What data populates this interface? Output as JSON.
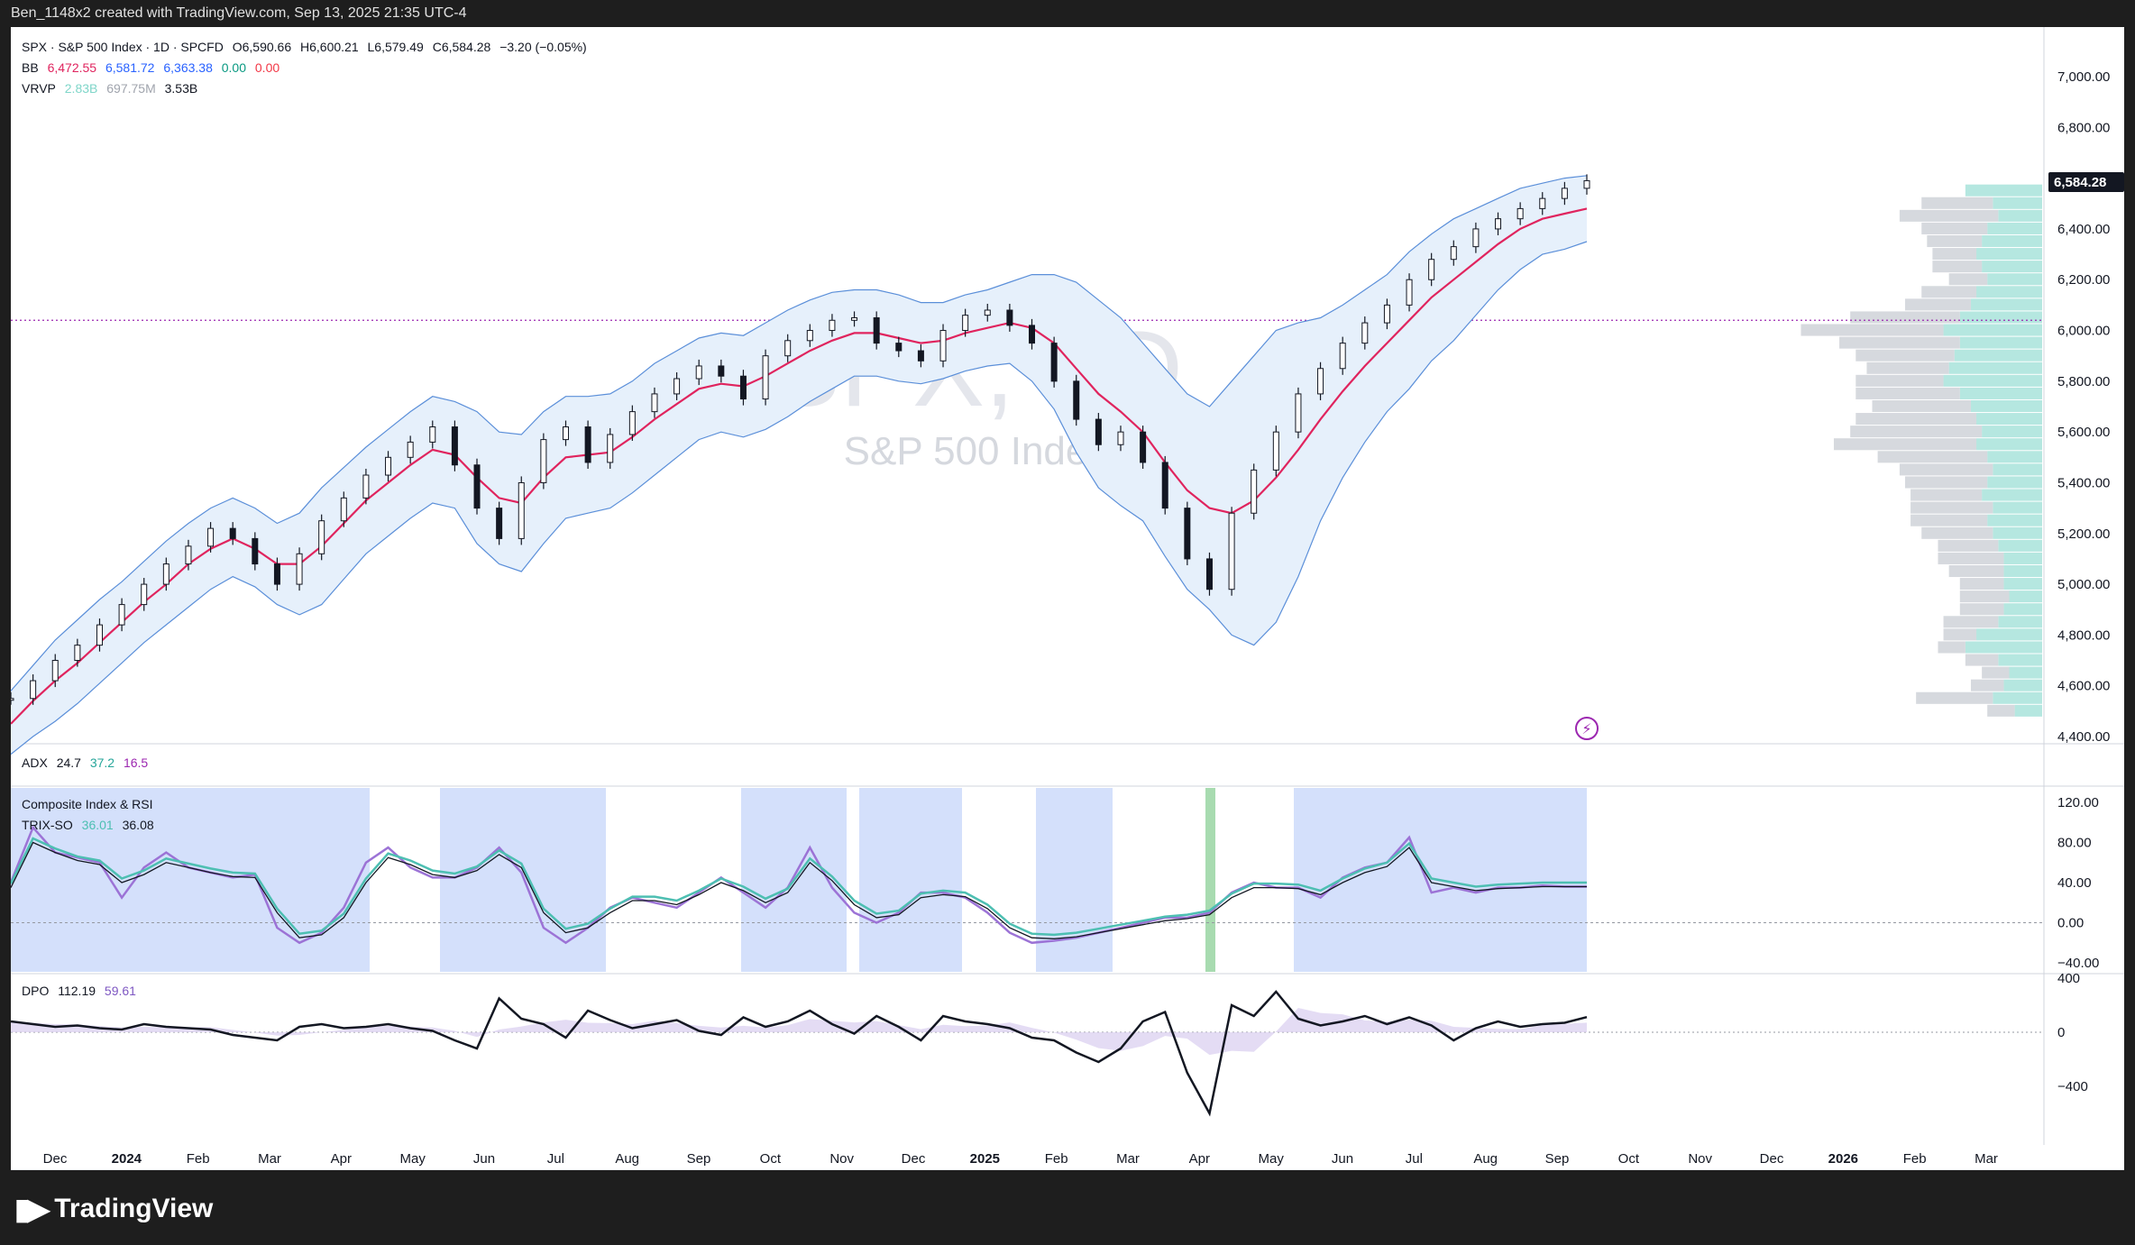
{
  "header": {
    "text": "Ben_1148x2 created with TradingView.com, Sep 13, 2025 21:35 UTC-4"
  },
  "legend": {
    "main": {
      "symbol": "SPX · S&P 500 Index · 1D · SPCFD",
      "open": "O6,590.66",
      "high": "H6,600.21",
      "low": "L6,579.49",
      "close": "C6,584.28",
      "change": "−3.20 (−0.05%)"
    },
    "bb": {
      "label": "BB",
      "v1": "6,472.55",
      "v2": "6,581.72",
      "v3": "6,363.38",
      "v4": "0.00",
      "v5": "0.00"
    },
    "vrvp": {
      "label": "VRVP",
      "v1": "2.83B",
      "v2": "697.75M",
      "v3": "3.53B"
    },
    "adx": {
      "label": "ADX",
      "v1": "24.7",
      "v2": "37.2",
      "v3": "16.5"
    },
    "composite": {
      "label": "Composite Index & RSI"
    },
    "trix": {
      "label": "TRIX-SO",
      "v1": "36.01",
      "v2": "36.08"
    },
    "dpo": {
      "label": "DPO",
      "v1": "112.19",
      "v2": "59.61"
    }
  },
  "watermark": {
    "big": "SPX, 1D",
    "small": "S&P 500 Index"
  },
  "price_badge": "6,584.28",
  "footer": {
    "logo": "TradingView"
  },
  "colors": {
    "accent_red": "#e0245e",
    "band_fill": "#e6f0fb",
    "band_line": "#5b8fd9",
    "teal": "#4dbfb2",
    "purple": "#9c73d6",
    "highlight_blue": "#d4e0fb",
    "highlight_green": "#a8dbb0"
  },
  "chart_data": {
    "type": "line",
    "title": "SPX · S&P 500 Index · 1D · SPCFD",
    "price_axis": {
      "ticks": [
        "7,000.00",
        "6,800.00",
        "6,600.00",
        "6,400.00",
        "6,200.00",
        "6,000.00",
        "5,800.00",
        "5,600.00",
        "5,400.00",
        "5,200.00",
        "5,000.00",
        "4,800.00",
        "4,600.00",
        "4,400.00"
      ],
      "ylim": [
        4350,
        7100
      ]
    },
    "rsi_axis": {
      "ticks": [
        "120.00",
        "80.00",
        "40.00",
        "0.00",
        "−40.00"
      ]
    },
    "dpo_axis": {
      "ticks": [
        "400",
        "0",
        "−400"
      ]
    },
    "time_axis": [
      {
        "label": "Dec",
        "bold": false
      },
      {
        "label": "2024",
        "bold": true
      },
      {
        "label": "Feb",
        "bold": false
      },
      {
        "label": "Mar",
        "bold": false
      },
      {
        "label": "Apr",
        "bold": false
      },
      {
        "label": "May",
        "bold": false
      },
      {
        "label": "Jun",
        "bold": false
      },
      {
        "label": "Jul",
        "bold": false
      },
      {
        "label": "Aug",
        "bold": false
      },
      {
        "label": "Sep",
        "bold": false
      },
      {
        "label": "Oct",
        "bold": false
      },
      {
        "label": "Nov",
        "bold": false
      },
      {
        "label": "Dec",
        "bold": false
      },
      {
        "label": "2025",
        "bold": true
      },
      {
        "label": "Feb",
        "bold": false
      },
      {
        "label": "Mar",
        "bold": false
      },
      {
        "label": "Apr",
        "bold": false
      },
      {
        "label": "May",
        "bold": false
      },
      {
        "label": "Jun",
        "bold": false
      },
      {
        "label": "Jul",
        "bold": false
      },
      {
        "label": "Aug",
        "bold": false
      },
      {
        "label": "Sep",
        "bold": false
      },
      {
        "label": "Oct",
        "bold": false
      },
      {
        "label": "Nov",
        "bold": false
      },
      {
        "label": "Dec",
        "bold": false
      },
      {
        "label": "2026",
        "bold": true
      },
      {
        "label": "Feb",
        "bold": false
      },
      {
        "label": "Mar",
        "bold": false
      }
    ],
    "price_series": {
      "name": "SPX",
      "values": [
        4550,
        4620,
        4700,
        4760,
        4840,
        4920,
        5000,
        5080,
        5150,
        5220,
        5180,
        5080,
        5000,
        5120,
        5250,
        5340,
        5430,
        5500,
        5560,
        5620,
        5470,
        5300,
        5180,
        5400,
        5570,
        5620,
        5480,
        5590,
        5680,
        5750,
        5810,
        5860,
        5820,
        5730,
        5900,
        5960,
        6000,
        6040,
        6050,
        5950,
        5920,
        5880,
        6000,
        6060,
        6080,
        6020,
        5950,
        5800,
        5650,
        5550,
        5600,
        5480,
        5300,
        5100,
        4980,
        5280,
        5450,
        5600,
        5750,
        5850,
        5950,
        6030,
        6100,
        6200,
        6280,
        6330,
        6400,
        6440,
        6480,
        6520,
        6560,
        6590
      ]
    },
    "bb_basis": {
      "name": "BB",
      "values": [
        4450,
        4540,
        4620,
        4690,
        4770,
        4850,
        4930,
        5000,
        5080,
        5140,
        5180,
        5140,
        5080,
        5080,
        5150,
        5240,
        5330,
        5400,
        5470,
        5530,
        5510,
        5420,
        5340,
        5320,
        5420,
        5500,
        5510,
        5520,
        5580,
        5650,
        5710,
        5770,
        5790,
        5780,
        5820,
        5870,
        5920,
        5960,
        5990,
        5990,
        5970,
        5950,
        5960,
        5990,
        6010,
        6030,
        6010,
        5950,
        5850,
        5750,
        5680,
        5600,
        5480,
        5370,
        5300,
        5280,
        5330,
        5420,
        5530,
        5650,
        5760,
        5860,
        5950,
        6040,
        6130,
        6200,
        6270,
        6340,
        6400,
        6440,
        6460,
        6480
      ]
    },
    "bb_upper": {
      "values": [
        4580,
        4680,
        4780,
        4860,
        4940,
        5010,
        5090,
        5170,
        5240,
        5300,
        5340,
        5300,
        5240,
        5280,
        5380,
        5460,
        5540,
        5610,
        5680,
        5740,
        5720,
        5680,
        5600,
        5590,
        5680,
        5740,
        5740,
        5750,
        5800,
        5870,
        5920,
        5970,
        5990,
        5980,
        6030,
        6080,
        6120,
        6150,
        6160,
        6160,
        6140,
        6110,
        6110,
        6140,
        6160,
        6190,
        6220,
        6220,
        6190,
        6120,
        6050,
        5950,
        5850,
        5750,
        5700,
        5800,
        5900,
        6000,
        6030,
        6050,
        6100,
        6160,
        6220,
        6310,
        6380,
        6440,
        6480,
        6520,
        6560,
        6580,
        6600,
        6610
      ]
    },
    "bb_lower": {
      "values": [
        4330,
        4400,
        4460,
        4530,
        4610,
        4690,
        4770,
        4840,
        4910,
        4980,
        5030,
        4990,
        4920,
        4880,
        4920,
        5020,
        5120,
        5190,
        5260,
        5320,
        5300,
        5160,
        5080,
        5050,
        5160,
        5260,
        5280,
        5300,
        5360,
        5430,
        5500,
        5570,
        5600,
        5580,
        5610,
        5660,
        5720,
        5770,
        5820,
        5820,
        5800,
        5790,
        5810,
        5840,
        5860,
        5870,
        5800,
        5690,
        5520,
        5380,
        5310,
        5250,
        5110,
        4980,
        4900,
        4800,
        4760,
        4850,
        5030,
        5250,
        5420,
        5560,
        5680,
        5770,
        5880,
        5960,
        6060,
        6160,
        6240,
        6300,
        6320,
        6350
      ]
    },
    "composite_index": {
      "values": [
        40,
        95,
        70,
        65,
        60,
        25,
        55,
        70,
        55,
        50,
        45,
        48,
        -5,
        -20,
        -10,
        15,
        60,
        75,
        55,
        45,
        45,
        55,
        75,
        50,
        -5,
        -20,
        -5,
        15,
        25,
        20,
        15,
        30,
        45,
        30,
        15,
        35,
        75,
        35,
        10,
        0,
        10,
        30,
        30,
        25,
        10,
        -10,
        -20,
        -18,
        -15,
        -10,
        -5,
        0,
        5,
        5,
        10,
        30,
        40,
        35,
        35,
        25,
        45,
        55,
        60,
        85,
        30,
        35,
        30,
        35,
        35,
        37,
        36,
        36
      ]
    },
    "trix_so": {
      "values": [
        35,
        80,
        70,
        62,
        58,
        40,
        48,
        60,
        55,
        50,
        46,
        45,
        10,
        -15,
        -12,
        5,
        40,
        65,
        58,
        48,
        45,
        52,
        68,
        55,
        10,
        -10,
        -5,
        10,
        22,
        22,
        18,
        28,
        40,
        32,
        20,
        30,
        60,
        42,
        18,
        5,
        8,
        25,
        28,
        26,
        14,
        -5,
        -15,
        -16,
        -14,
        -10,
        -6,
        -2,
        2,
        4,
        8,
        25,
        35,
        35,
        34,
        28,
        40,
        50,
        56,
        75,
        40,
        36,
        32,
        34,
        35,
        36,
        36,
        36
      ]
    },
    "dpo": {
      "values": [
        80,
        60,
        40,
        50,
        30,
        20,
        60,
        40,
        30,
        20,
        -20,
        -40,
        -60,
        40,
        60,
        30,
        40,
        60,
        30,
        10,
        -60,
        -120,
        250,
        100,
        60,
        -40,
        160,
        90,
        30,
        60,
        90,
        10,
        -20,
        110,
        40,
        80,
        160,
        60,
        -10,
        120,
        40,
        -60,
        120,
        80,
        60,
        30,
        -40,
        -60,
        -150,
        -220,
        -120,
        80,
        150,
        -300,
        -600,
        200,
        120,
        300,
        100,
        50,
        80,
        120,
        60,
        110,
        50,
        -60,
        30,
        80,
        40,
        60,
        70,
        112
      ]
    },
    "volume_profile_bins": [
      {
        "price": 6550,
        "gray": 0.0,
        "teal": 0.14
      },
      {
        "price": 6500,
        "gray": 0.13,
        "teal": 0.09
      },
      {
        "price": 6450,
        "gray": 0.18,
        "teal": 0.08
      },
      {
        "price": 6400,
        "gray": 0.12,
        "teal": 0.1
      },
      {
        "price": 6350,
        "gray": 0.1,
        "teal": 0.11
      },
      {
        "price": 6300,
        "gray": 0.08,
        "teal": 0.12
      },
      {
        "price": 6250,
        "gray": 0.09,
        "teal": 0.11
      },
      {
        "price": 6200,
        "gray": 0.07,
        "teal": 0.1
      },
      {
        "price": 6150,
        "gray": 0.1,
        "teal": 0.12
      },
      {
        "price": 6100,
        "gray": 0.12,
        "teal": 0.13
      },
      {
        "price": 6050,
        "gray": 0.2,
        "teal": 0.15
      },
      {
        "price": 6000,
        "gray": 0.26,
        "teal": 0.18
      },
      {
        "price": 5950,
        "gray": 0.22,
        "teal": 0.15
      },
      {
        "price": 5900,
        "gray": 0.18,
        "teal": 0.16
      },
      {
        "price": 5850,
        "gray": 0.15,
        "teal": 0.17
      },
      {
        "price": 5800,
        "gray": 0.16,
        "teal": 0.18
      },
      {
        "price": 5750,
        "gray": 0.19,
        "teal": 0.15
      },
      {
        "price": 5700,
        "gray": 0.18,
        "teal": 0.13
      },
      {
        "price": 5650,
        "gray": 0.22,
        "teal": 0.12
      },
      {
        "price": 5600,
        "gray": 0.24,
        "teal": 0.11
      },
      {
        "price": 5550,
        "gray": 0.26,
        "teal": 0.12
      },
      {
        "price": 5500,
        "gray": 0.2,
        "teal": 0.1
      },
      {
        "price": 5450,
        "gray": 0.17,
        "teal": 0.09
      },
      {
        "price": 5400,
        "gray": 0.15,
        "teal": 0.1
      },
      {
        "price": 5350,
        "gray": 0.13,
        "teal": 0.11
      },
      {
        "price": 5300,
        "gray": 0.15,
        "teal": 0.09
      },
      {
        "price": 5250,
        "gray": 0.14,
        "teal": 0.1
      },
      {
        "price": 5200,
        "gray": 0.13,
        "teal": 0.09
      },
      {
        "price": 5150,
        "gray": 0.11,
        "teal": 0.08
      },
      {
        "price": 5100,
        "gray": 0.12,
        "teal": 0.07
      },
      {
        "price": 5050,
        "gray": 0.1,
        "teal": 0.07
      },
      {
        "price": 5000,
        "gray": 0.08,
        "teal": 0.07
      },
      {
        "price": 4950,
        "gray": 0.09,
        "teal": 0.06
      },
      {
        "price": 4900,
        "gray": 0.08,
        "teal": 0.07
      },
      {
        "price": 4850,
        "gray": 0.1,
        "teal": 0.08
      },
      {
        "price": 4800,
        "gray": 0.06,
        "teal": 0.12
      },
      {
        "price": 4750,
        "gray": 0.05,
        "teal": 0.14
      },
      {
        "price": 4700,
        "gray": 0.06,
        "teal": 0.08
      },
      {
        "price": 4650,
        "gray": 0.05,
        "teal": 0.06
      },
      {
        "price": 4600,
        "gray": 0.06,
        "teal": 0.07
      },
      {
        "price": 4550,
        "gray": 0.14,
        "teal": 0.09
      },
      {
        "price": 4500,
        "gray": 0.05,
        "teal": 0.05
      }
    ],
    "reference_line": 6040
  }
}
